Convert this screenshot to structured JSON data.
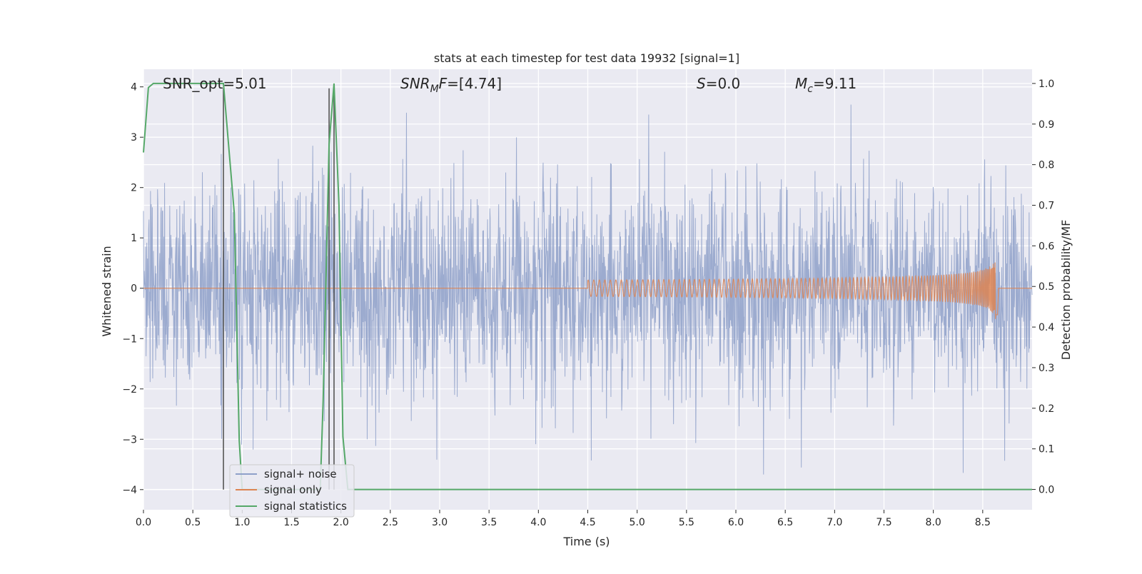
{
  "chart_data": {
    "type": "line",
    "title": "stats at each timestep for test data 19932 [signal=1]",
    "xlabel": "Time (s)",
    "ylabel": "Whitened strain",
    "y2label": "Detection probability/MF",
    "xlim": [
      0,
      9.0
    ],
    "ylim": [
      -4.4,
      4.35
    ],
    "y2lim": [
      -0.05,
      1.035
    ],
    "x_ticks": [
      "0.0",
      "0.5",
      "1.0",
      "1.5",
      "2.0",
      "2.5",
      "3.0",
      "3.5",
      "4.0",
      "4.5",
      "5.0",
      "5.5",
      "6.0",
      "6.5",
      "7.0",
      "7.5",
      "8.0",
      "8.5"
    ],
    "y_ticks": [
      "4",
      "3",
      "2",
      "1",
      "0",
      "−1",
      "−2",
      "−3",
      "−4"
    ],
    "y2_ticks": [
      "1.0",
      "0.9",
      "0.8",
      "0.7",
      "0.6",
      "0.5",
      "0.4",
      "0.3",
      "0.2",
      "0.1",
      "0.0"
    ],
    "grid": true,
    "legend_position": "lower-left",
    "annotations": {
      "snr_opt": "SNR_opt=5.01",
      "snr_mf": {
        "italic": "SNR",
        "sub": "M",
        "italic2": "F",
        "rest": "=[4.74]"
      },
      "s_stat": {
        "italic": "S",
        "rest": "=0.0"
      },
      "mc": {
        "italic": "M",
        "sub": "c",
        "rest": "=9.11"
      }
    },
    "series": [
      {
        "name": "signal+ noise",
        "color": "#8ea0c9",
        "description_stats": {
          "x_start": 0.0,
          "x_end": 9.0,
          "approx_peak_max": 3.95,
          "approx_peak_min": -3.65
        }
      },
      {
        "name": "signal only",
        "color": "#dd8452",
        "chirp": {
          "x_start": 4.5,
          "x_end": 8.65,
          "final_amplitude": 0.65
        }
      },
      {
        "name": "signal statistics",
        "color": "#55a868",
        "axis": "y2",
        "points": [
          [
            0.0,
            0.83
          ],
          [
            0.05,
            0.99
          ],
          [
            0.1,
            1.0
          ],
          [
            0.8,
            1.0
          ],
          [
            0.81,
            1.0
          ],
          [
            0.92,
            0.68
          ],
          [
            0.97,
            0.12
          ],
          [
            1.0,
            0.0
          ],
          [
            1.79,
            0.0
          ],
          [
            1.82,
            0.22
          ],
          [
            1.88,
            0.85
          ],
          [
            1.93,
            1.0
          ],
          [
            1.98,
            0.7
          ],
          [
            2.02,
            0.13
          ],
          [
            2.07,
            0.0
          ],
          [
            9.0,
            0.0
          ]
        ]
      }
    ],
    "vlines": {
      "color": "#555555",
      "x": [
        0.81,
        1.88,
        1.93
      ],
      "y_range": [
        -4.0,
        3.97
      ]
    }
  }
}
